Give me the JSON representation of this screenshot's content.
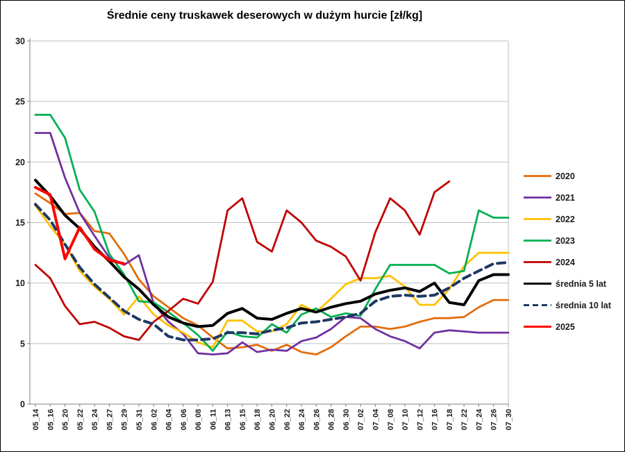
{
  "chart_data": {
    "type": "line",
    "title": "Średnie ceny truskawek deserowych w dużym hurcie [zł/kg]",
    "xlabel": "",
    "ylabel": "",
    "ylim": [
      0,
      30
    ],
    "yticks": [
      0,
      5,
      10,
      15,
      20,
      25,
      30
    ],
    "grid": true,
    "legend_position": "right",
    "categories": [
      "05_14",
      "05_16",
      "05_20",
      "05_22",
      "05_24",
      "05_27",
      "05_29",
      "05_31",
      "06_02",
      "06_04",
      "06_06",
      "06_08",
      "06_11",
      "06_13",
      "06_15",
      "06_18",
      "06_20",
      "06_22",
      "06_24",
      "06_26",
      "06_28",
      "06_30",
      "07_02",
      "07_04",
      "07_08",
      "07_10",
      "07_12",
      "07_16",
      "07_18",
      "07_22",
      "07_24",
      "07_26",
      "07_30"
    ],
    "series": [
      {
        "name": "2020",
        "color": "#E36C0A",
        "dash": "solid",
        "width": 2.8,
        "values": [
          17.4,
          16.6,
          15.7,
          15.8,
          14.3,
          14.1,
          12.4,
          10.3,
          8.9,
          8.0,
          7.1,
          6.5,
          5.5,
          4.6,
          4.7,
          4.9,
          4.4,
          4.9,
          4.3,
          4.1,
          4.7,
          5.6,
          6.4,
          6.4,
          6.2,
          6.4,
          6.8,
          7.1,
          7.1,
          7.2,
          8.0,
          8.6,
          8.6
        ]
      },
      {
        "name": "2021",
        "color": "#7030A0",
        "dash": "solid",
        "width": 2.8,
        "values": [
          22.4,
          22.4,
          18.7,
          15.8,
          13.9,
          12.1,
          11.5,
          12.3,
          8.3,
          6.8,
          5.8,
          4.2,
          4.1,
          4.2,
          5.1,
          4.3,
          4.5,
          4.4,
          5.2,
          5.5,
          6.2,
          7.2,
          7.1,
          6.2,
          5.6,
          5.2,
          4.6,
          5.9,
          6.1,
          6.0,
          5.9,
          5.9,
          5.9
        ]
      },
      {
        "name": "2022",
        "color": "#FFC000",
        "dash": "solid",
        "width": 2.8,
        "values": [
          16.4,
          14.7,
          13.2,
          11.0,
          9.7,
          8.7,
          7.4,
          8.9,
          7.4,
          6.5,
          5.9,
          5.1,
          4.7,
          6.9,
          6.9,
          6.0,
          6.0,
          6.6,
          8.2,
          7.6,
          8.7,
          9.9,
          10.4,
          10.4,
          10.6,
          9.7,
          8.2,
          8.2,
          9.5,
          11.4,
          12.5,
          12.5,
          12.5
        ]
      },
      {
        "name": "2023",
        "color": "#00B050",
        "dash": "solid",
        "width": 2.8,
        "values": [
          23.9,
          23.9,
          22.0,
          17.7,
          15.9,
          12.4,
          10.7,
          8.5,
          8.4,
          7.6,
          6.7,
          5.7,
          4.4,
          6.0,
          5.6,
          5.5,
          6.6,
          5.9,
          7.4,
          7.9,
          7.2,
          7.5,
          7.3,
          9.5,
          11.5,
          11.5,
          11.5,
          11.5,
          10.8,
          11.0,
          16.0,
          15.4,
          15.4
        ]
      },
      {
        "name": "2024",
        "color": "#C00000",
        "dash": "solid",
        "width": 2.8,
        "values": [
          11.5,
          10.4,
          8.1,
          6.6,
          6.8,
          6.3,
          5.6,
          5.3,
          6.8,
          7.7,
          8.7,
          8.3,
          10.1,
          16.0,
          17.0,
          13.4,
          12.6,
          16.0,
          15.0,
          13.5,
          13.0,
          12.2,
          10.2,
          14.2,
          17.0,
          16.0,
          14.0,
          17.5,
          18.4,
          null,
          null,
          null,
          null
        ]
      },
      {
        "name": "średnia 5 lat",
        "color": "#000000",
        "dash": "solid",
        "width": 4,
        "values": [
          18.5,
          17.2,
          15.6,
          14.5,
          13.0,
          11.8,
          10.5,
          9.5,
          8.2,
          7.2,
          6.7,
          6.4,
          6.5,
          7.5,
          7.9,
          7.1,
          7.0,
          7.5,
          7.9,
          7.6,
          8.0,
          8.3,
          8.5,
          9.1,
          9.4,
          9.6,
          9.3,
          10.0,
          8.4,
          8.2,
          10.2,
          10.7,
          10.7
        ]
      },
      {
        "name": "średnia 10 lat",
        "color": "#1F3864",
        "dash": "dashed",
        "width": 4,
        "values": [
          16.5,
          15.2,
          13.2,
          11.3,
          9.9,
          8.8,
          7.7,
          7.0,
          6.6,
          5.6,
          5.3,
          5.3,
          5.4,
          5.9,
          5.9,
          5.8,
          6.1,
          6.3,
          6.7,
          6.8,
          7.0,
          7.2,
          7.5,
          8.5,
          8.9,
          9.0,
          8.9,
          9.0,
          9.6,
          10.4,
          11.0,
          11.6,
          11.7
        ]
      },
      {
        "name": "2025",
        "color": "#FF0000",
        "dash": "solid",
        "width": 4,
        "values": [
          17.9,
          17.3,
          12.0,
          14.6,
          12.8,
          11.9,
          11.6,
          null,
          null,
          null,
          null,
          null,
          null,
          null,
          null,
          null,
          null,
          null,
          null,
          null,
          null,
          null,
          null,
          null,
          null,
          null,
          null,
          null,
          null,
          null,
          null,
          null,
          null
        ]
      }
    ]
  },
  "layout_colors": {
    "gridline": "#BFBFBF",
    "axis": "#808080",
    "plot_right_border": "#BFBFBF",
    "background": "#FFFFFF"
  }
}
